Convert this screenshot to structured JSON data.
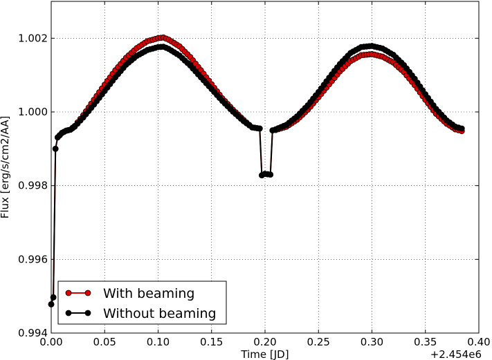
{
  "chart_data": {
    "type": "line",
    "title": "",
    "xlabel": "Time [JD]",
    "ylabel": "Flux [erg/s/cm2/AA]",
    "x_offset_label": "+2.454e6",
    "xlim": [
      0.0,
      0.4
    ],
    "ylim": [
      0.994,
      1.003
    ],
    "xticks": [
      0.0,
      0.05,
      0.1,
      0.15,
      0.2,
      0.25,
      0.3,
      0.35,
      0.4
    ],
    "xtick_labels": [
      "0.00",
      "0.05",
      "0.10",
      "0.15",
      "0.20",
      "0.25",
      "0.30",
      "0.35",
      "0.40"
    ],
    "yticks": [
      0.994,
      0.996,
      0.998,
      1.0,
      1.002
    ],
    "ytick_labels": [
      "0.994",
      "0.996",
      "0.998",
      "1.000",
      "1.002"
    ],
    "grid": true,
    "legend_position": "lower-left",
    "series": [
      {
        "name": "With beaming",
        "color": "#dd0000",
        "points": [
          [
            0.0,
            0.99478
          ],
          [
            0.002,
            0.99497
          ],
          [
            0.004,
            0.999
          ],
          [
            0.006,
            0.99931
          ],
          [
            0.008,
            0.99937
          ],
          [
            0.01,
            0.99943
          ],
          [
            0.014,
            0.99949
          ],
          [
            0.018,
            0.99952
          ],
          [
            0.022,
            0.99962
          ],
          [
            0.03,
            0.99991
          ],
          [
            0.04,
            1.00033
          ],
          [
            0.05,
            1.00074
          ],
          [
            0.06,
            1.00113
          ],
          [
            0.07,
            1.00147
          ],
          [
            0.08,
            1.00173
          ],
          [
            0.09,
            1.00192
          ],
          [
            0.1,
            1.002
          ],
          [
            0.105,
            1.00202
          ],
          [
            0.11,
            1.00196
          ],
          [
            0.12,
            1.00178
          ],
          [
            0.13,
            1.00149
          ],
          [
            0.14,
            1.00113
          ],
          [
            0.15,
            1.00075
          ],
          [
            0.16,
            1.00037
          ],
          [
            0.17,
            1.00006
          ],
          [
            0.18,
            0.99978
          ],
          [
            0.188,
            0.99958
          ],
          [
            0.195,
            0.99955
          ],
          [
            0.197,
            0.99828
          ],
          [
            0.2,
            0.99832
          ],
          [
            0.205,
            0.9983
          ],
          [
            0.207,
            0.9995
          ],
          [
            0.21,
            0.99951
          ],
          [
            0.22,
            0.9996
          ],
          [
            0.23,
            0.99979
          ],
          [
            0.24,
            1.00006
          ],
          [
            0.25,
            1.0004
          ],
          [
            0.26,
            1.00075
          ],
          [
            0.27,
            1.0011
          ],
          [
            0.28,
            1.00138
          ],
          [
            0.29,
            1.00154
          ],
          [
            0.3,
            1.00157
          ],
          [
            0.31,
            1.0015
          ],
          [
            0.32,
            1.00134
          ],
          [
            0.33,
            1.00108
          ],
          [
            0.34,
            1.00073
          ],
          [
            0.35,
            1.00033
          ],
          [
            0.36,
            0.99995
          ],
          [
            0.37,
            0.99968
          ],
          [
            0.378,
            0.99953
          ],
          [
            0.384,
            0.99948
          ]
        ]
      },
      {
        "name": "Without beaming",
        "color": "#000000",
        "points": [
          [
            0.0,
            0.99478
          ],
          [
            0.002,
            0.99497
          ],
          [
            0.004,
            0.999
          ],
          [
            0.006,
            0.99931
          ],
          [
            0.008,
            0.99937
          ],
          [
            0.01,
            0.99943
          ],
          [
            0.014,
            0.99949
          ],
          [
            0.018,
            0.99952
          ],
          [
            0.022,
            0.9996
          ],
          [
            0.03,
            0.99985
          ],
          [
            0.04,
            1.0002
          ],
          [
            0.05,
            1.00057
          ],
          [
            0.06,
            1.00094
          ],
          [
            0.07,
            1.00128
          ],
          [
            0.08,
            1.00152
          ],
          [
            0.09,
            1.00168
          ],
          [
            0.1,
            1.00176
          ],
          [
            0.105,
            1.00177
          ],
          [
            0.11,
            1.00171
          ],
          [
            0.12,
            1.00153
          ],
          [
            0.13,
            1.00126
          ],
          [
            0.14,
            1.00094
          ],
          [
            0.15,
            1.00062
          ],
          [
            0.16,
            1.0003
          ],
          [
            0.17,
            1.00001
          ],
          [
            0.18,
            0.99975
          ],
          [
            0.188,
            0.99958
          ],
          [
            0.195,
            0.99955
          ],
          [
            0.197,
            0.99828
          ],
          [
            0.2,
            0.99832
          ],
          [
            0.205,
            0.9983
          ],
          [
            0.207,
            0.9995
          ],
          [
            0.21,
            0.99953
          ],
          [
            0.22,
            0.99965
          ],
          [
            0.23,
            0.99988
          ],
          [
            0.24,
            1.00018
          ],
          [
            0.25,
            1.00054
          ],
          [
            0.26,
            1.00093
          ],
          [
            0.27,
            1.0013
          ],
          [
            0.28,
            1.0016
          ],
          [
            0.29,
            1.00176
          ],
          [
            0.3,
            1.00179
          ],
          [
            0.31,
            1.00172
          ],
          [
            0.32,
            1.00155
          ],
          [
            0.33,
            1.00127
          ],
          [
            0.34,
            1.0009
          ],
          [
            0.35,
            1.00048
          ],
          [
            0.36,
            1.00008
          ],
          [
            0.37,
            0.99977
          ],
          [
            0.378,
            0.9996
          ],
          [
            0.384,
            0.99955
          ]
        ]
      }
    ]
  }
}
